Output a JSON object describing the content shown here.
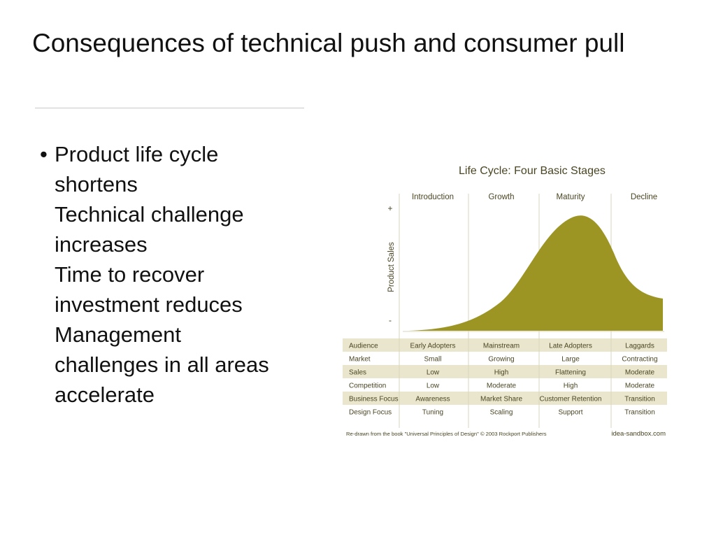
{
  "title": "Consequences of technical push and consumer pull",
  "bullet_lines": [
    "Product life cycle",
    "shortens",
    "Technical challenge",
    "increases",
    "Time to recover",
    "investment reduces",
    "Management",
    "challenges in all areas",
    "accelerate"
  ],
  "chart": {
    "title": "Life Cycle: Four Basic Stages",
    "y_label": "Product Sales",
    "y_plus": "+",
    "y_minus": "-",
    "stages": [
      "Introduction",
      "Growth",
      "Maturity",
      "Decline"
    ],
    "rows": [
      {
        "label": "Audience",
        "values": [
          "Early Adopters",
          "Mainstream",
          "Late Adopters",
          "Laggards"
        ]
      },
      {
        "label": "Market",
        "values": [
          "Small",
          "Growing",
          "Large",
          "Contracting"
        ]
      },
      {
        "label": "Sales",
        "values": [
          "Low",
          "High",
          "Flattening",
          "Moderate"
        ]
      },
      {
        "label": "Competition",
        "values": [
          "Low",
          "Moderate",
          "High",
          "Moderate"
        ]
      },
      {
        "label": "Business Focus",
        "values": [
          "Awareness",
          "Market Share",
          "Customer Retention",
          "Transition"
        ]
      },
      {
        "label": "Design Focus",
        "values": [
          "Tuning",
          "Scaling",
          "Support",
          "Transition"
        ]
      }
    ],
    "footer_left": "Re-drawn from the book \"Universal Principles of Design\" © 2003 Rockport Publishers",
    "footer_right": "idea-sandbox.com",
    "colors": {
      "curve": "#9c9524",
      "stripe": "#e9e6cd",
      "text": "#4a4522",
      "grid": "#d9d6bf"
    }
  }
}
